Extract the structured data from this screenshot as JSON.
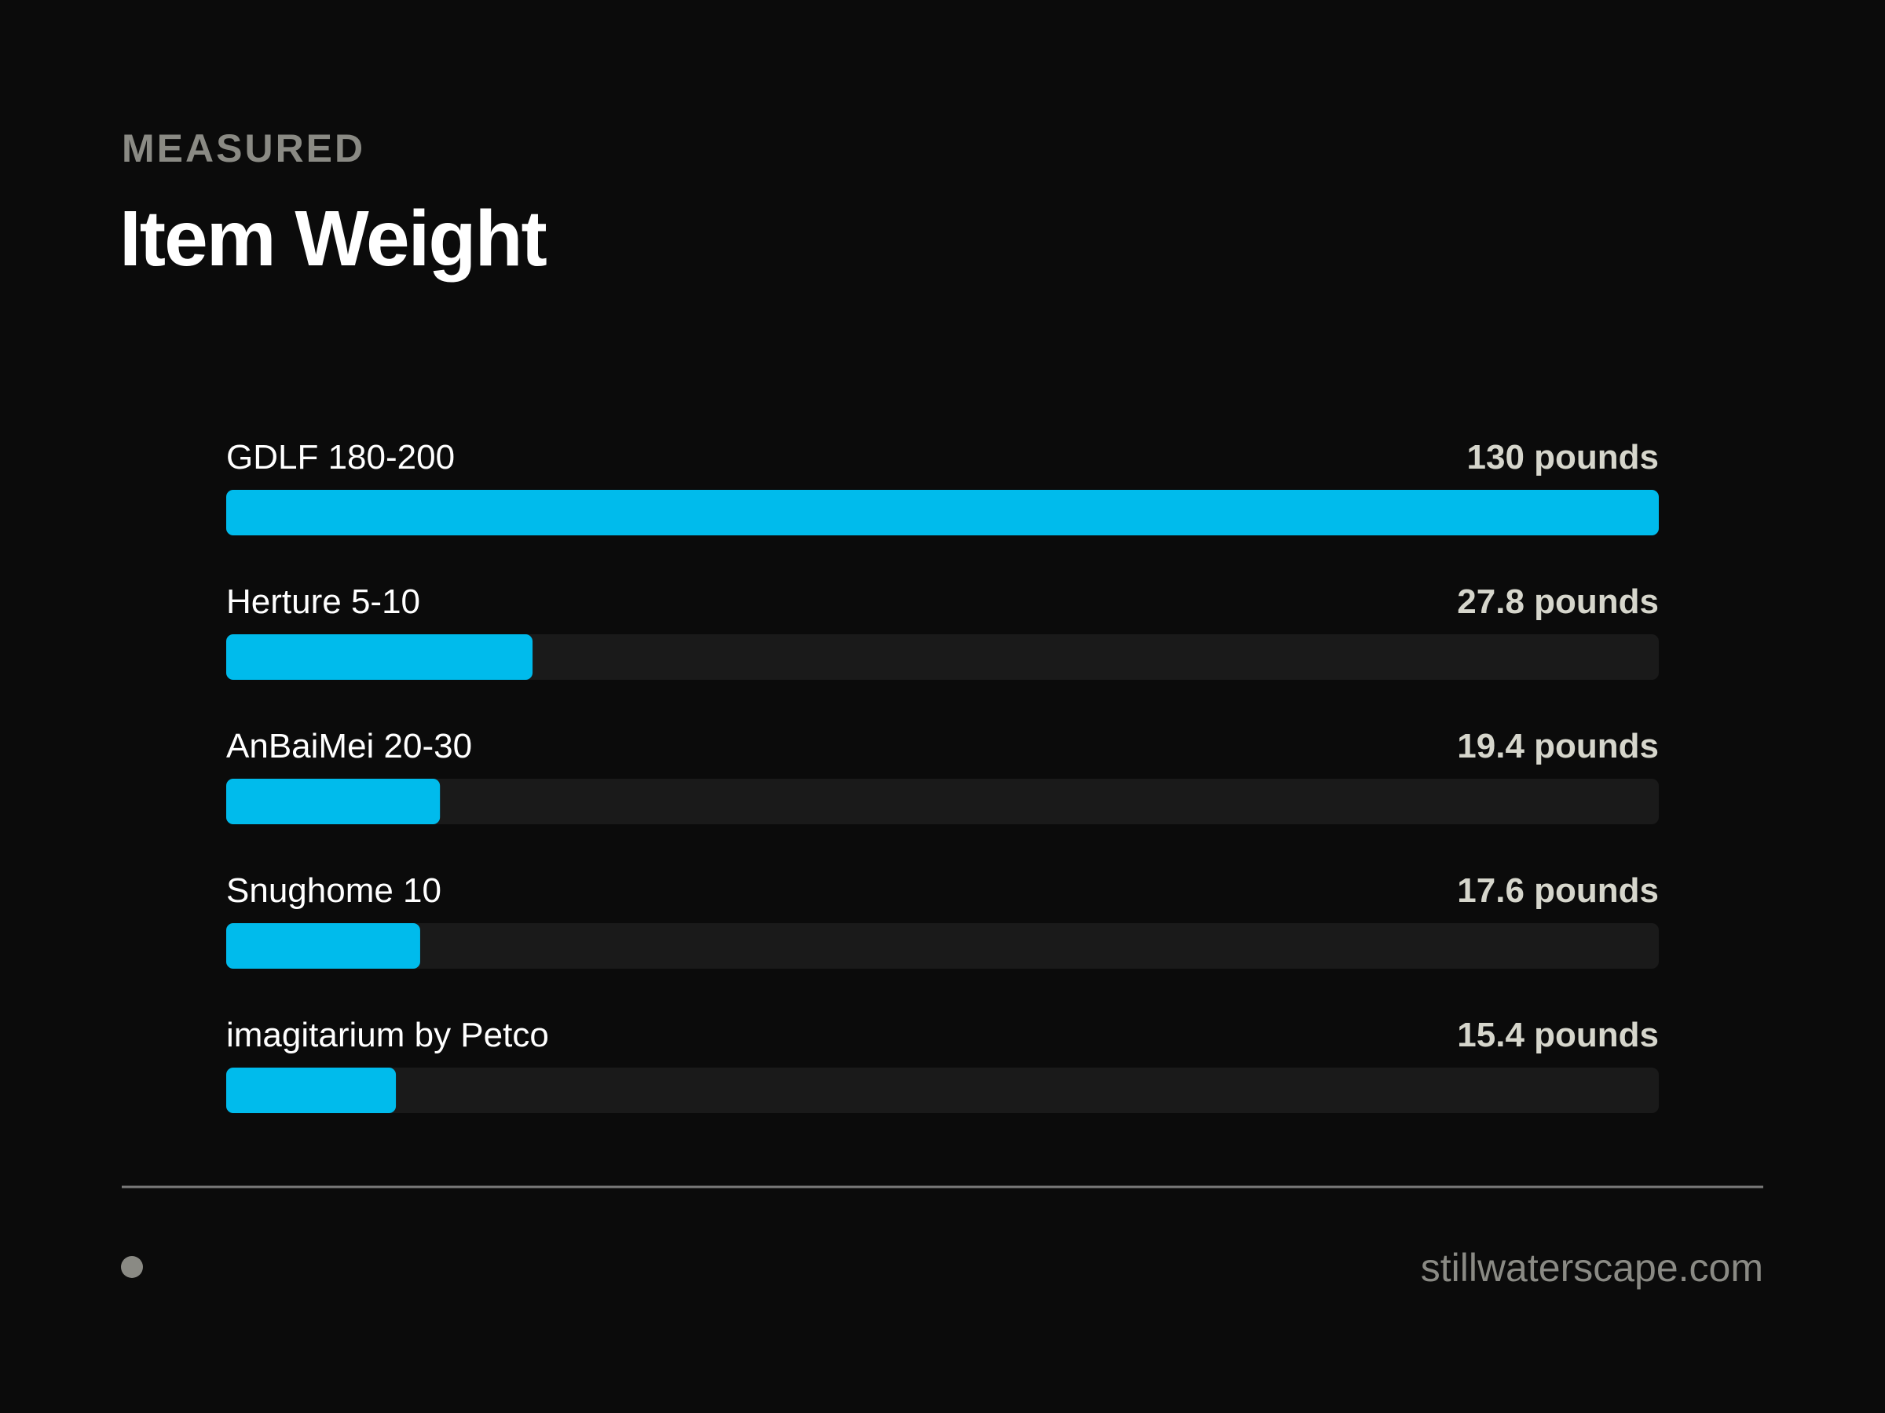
{
  "chart_data": {
    "type": "bar",
    "orientation": "horizontal",
    "eyebrow": "MEASURED",
    "title": "Item Weight",
    "categories": [
      "GDLF 180-200",
      "Herture 5-10",
      "AnBaiMei 20-30",
      "Snughome 10",
      "imagitarium by Petco"
    ],
    "values": [
      130,
      27.8,
      19.4,
      17.6,
      15.4
    ],
    "value_labels": [
      "130 pounds",
      "27.8 pounds",
      "19.4 pounds",
      "17.6 pounds",
      "15.4 pounds"
    ],
    "xlim": [
      0,
      130
    ],
    "color": "#00bbec",
    "source": "stillwaterscape.com"
  }
}
